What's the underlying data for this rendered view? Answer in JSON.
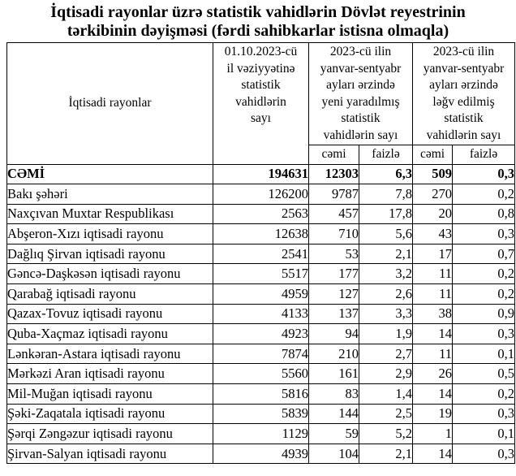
{
  "title": {
    "lines": [
      "İqtisadi rayonlar üzrə statistik vahidlərin Dövlət reyestrinin",
      "tərkibinin dəyişməsi (fərdi sahibkarlar istisna olmaqla)"
    ]
  },
  "table": {
    "header": {
      "region_col": "İqtisadi rayonlar",
      "stock_col": "01.10.2023-cü\nil vəziyyətinə\nstatistik\nvahidlərin\nsayı",
      "created_group": "2023-cü ilin\nyanvar-sentyabr\nayları ərzində\nyeni yaradılmış\nstatistik\nvahidlərin sayı",
      "liquidated_group": "2023-cü ilin\nyanvar-sentyabr\nayları ərzində\nləğv edilmiş\nstatistik\nvahidlərin sayı",
      "sub_total": "cəmi",
      "sub_percent": "faizlə"
    },
    "rows": [
      {
        "region": "CƏMİ",
        "stock": "194631",
        "created_total": "12303",
        "created_percent": "6,3",
        "liquidated_total": "509",
        "liquidated_percent": "0,3",
        "bold": true
      },
      {
        "region": "Bakı şəhəri",
        "stock": "126200",
        "created_total": "9787",
        "created_percent": "7,8",
        "liquidated_total": "270",
        "liquidated_percent": "0,2",
        "bold": false
      },
      {
        "region": "Naxçıvan Muxtar Respublikası",
        "stock": "2563",
        "created_total": "457",
        "created_percent": "17,8",
        "liquidated_total": "20",
        "liquidated_percent": "0,8",
        "bold": false
      },
      {
        "region": "Abşeron-Xızı iqtisadi rayonu",
        "stock": "12638",
        "created_total": "710",
        "created_percent": "5,6",
        "liquidated_total": "43",
        "liquidated_percent": "0,3",
        "bold": false
      },
      {
        "region": "Dağlıq Şirvan iqtisadi rayonu",
        "stock": "2541",
        "created_total": "53",
        "created_percent": "2,1",
        "liquidated_total": "17",
        "liquidated_percent": "0,7",
        "bold": false
      },
      {
        "region": "Gəncə-Daşkəsən iqtisadi rayonu",
        "stock": "5517",
        "created_total": "177",
        "created_percent": "3,2",
        "liquidated_total": "11",
        "liquidated_percent": "0,2",
        "bold": false
      },
      {
        "region": "Qarabağ iqtisadi rayonu",
        "stock": "4959",
        "created_total": "127",
        "created_percent": "2,6",
        "liquidated_total": "11",
        "liquidated_percent": "0,2",
        "bold": false
      },
      {
        "region": "Qazax-Tovuz iqtisadi rayonu",
        "stock": "4133",
        "created_total": "137",
        "created_percent": "3,3",
        "liquidated_total": "38",
        "liquidated_percent": "0,9",
        "bold": false
      },
      {
        "region": "Quba-Xaçmaz iqtisadi rayonu",
        "stock": "4923",
        "created_total": "94",
        "created_percent": "1,9",
        "liquidated_total": "14",
        "liquidated_percent": "0,3",
        "bold": false
      },
      {
        "region": "Lənkəran-Astara iqtisadi rayonu",
        "stock": "7874",
        "created_total": "210",
        "created_percent": "2,7",
        "liquidated_total": "11",
        "liquidated_percent": "0,1",
        "bold": false
      },
      {
        "region": "Mərkəzi Aran iqtisadi rayonu",
        "stock": "5560",
        "created_total": "161",
        "created_percent": "2,9",
        "liquidated_total": "26",
        "liquidated_percent": "0,5",
        "bold": false
      },
      {
        "region": "Mil-Muğan iqtisadi rayonu",
        "stock": "5816",
        "created_total": "83",
        "created_percent": "1,4",
        "liquidated_total": "14",
        "liquidated_percent": "0,2",
        "bold": false
      },
      {
        "region": "Şəki-Zaqatala iqtisadi rayonu",
        "stock": "5839",
        "created_total": "144",
        "created_percent": "2,5",
        "liquidated_total": "19",
        "liquidated_percent": "0,3",
        "bold": false
      },
      {
        "region": "Şərqi Zəngəzur iqtisadi rayonu",
        "stock": "1129",
        "created_total": "59",
        "created_percent": "5,2",
        "liquidated_total": "1",
        "liquidated_percent": "0,1",
        "bold": false
      },
      {
        "region": "Şirvan-Salyan iqtisadi rayonu",
        "stock": "4939",
        "created_total": "104",
        "created_percent": "2,1",
        "liquidated_total": "14",
        "liquidated_percent": "0,3",
        "bold": false
      }
    ]
  },
  "colors": {
    "text": "#000000",
    "background": "#ffffff",
    "border": "#000000"
  }
}
